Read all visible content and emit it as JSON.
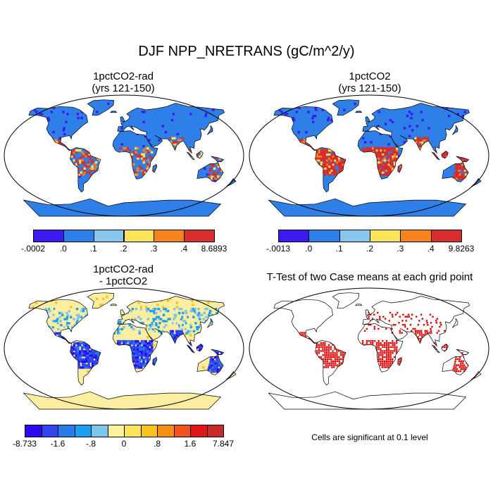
{
  "title": "DJF NPP_NRETRANS (gC/m^2/y)",
  "panels": [
    {
      "id": "rad",
      "title_line1": "1pctCO2-rad",
      "title_line2": "(yrs 121-150)"
    },
    {
      "id": "co2",
      "title_line1": "1pctCO2",
      "title_line2": "(yrs 121-150)"
    },
    {
      "id": "diff",
      "title_line1": "1pctCO2-rad",
      "title_line2": "- 1pctCO2"
    },
    {
      "id": "ttest",
      "title_line1": "T-Test of two Case means at each grid point",
      "title_line2": ""
    }
  ],
  "colorbars": [
    {
      "id": "rad",
      "colors": [
        "#3c1af0",
        "#2f7fe8",
        "#87c7ee",
        "#fce45a",
        "#f7831c",
        "#d62d2d"
      ],
      "labels": [
        "-.0002",
        ".0",
        ".1",
        ".2",
        ".3",
        ".4",
        "8.6893"
      ]
    },
    {
      "id": "co2",
      "colors": [
        "#3c1af0",
        "#2f7fe8",
        "#87c7ee",
        "#fce45a",
        "#f7831c",
        "#d62d2d"
      ],
      "labels": [
        "-.0013",
        ".0",
        ".1",
        ".2",
        ".3",
        ".4",
        "9.8263"
      ]
    },
    {
      "id": "diff",
      "colors": [
        "#2c0af0",
        "#3045f0",
        "#2a7ae8",
        "#1aa0f0",
        "#7cc6ee",
        "#fff0a0",
        "#fce45a",
        "#f9c21e",
        "#f58f12",
        "#f1521e",
        "#e01616",
        "#c82a2a"
      ],
      "labels": [
        "-8.733",
        "-1.6",
        "-.8",
        "0",
        ".8",
        "1.6",
        "7.847"
      ]
    }
  ],
  "note": "Cells are significant at 0.1 level",
  "map_colors": {
    "ocean": "#ffffff",
    "rad_base": "#2f7fe8",
    "co2_base": "#2f7fe8",
    "diff_base": "#fbeea0",
    "ttest_sig": "#e00000"
  }
}
